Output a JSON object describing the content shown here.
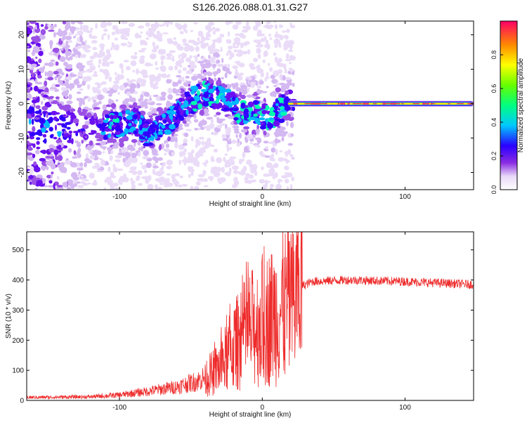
{
  "title": "S126.2026.088.01.31.G27",
  "chart_data": [
    {
      "type": "heatmap",
      "title": "S126.2026.088.01.31.G27",
      "xlabel": "Height of straight line (km)",
      "ylabel": "Frequency (Hz)",
      "xlim": [
        -165,
        148
      ],
      "ylim": [
        -25,
        24
      ],
      "xticks": [
        -100,
        0,
        100
      ],
      "yticks": [
        -20,
        -10,
        0,
        10,
        20
      ],
      "colorbar": {
        "label": "Normalized spectral amplitude",
        "range": [
          0,
          1
        ],
        "ticks": [
          0.0,
          0.2,
          0.4,
          0.6,
          0.8
        ]
      },
      "ridge": [
        {
          "x": -110,
          "y": -7
        },
        {
          "x": -100,
          "y": -6
        },
        {
          "x": -90,
          "y": -5
        },
        {
          "x": -80,
          "y": -9
        },
        {
          "x": -70,
          "y": -7
        },
        {
          "x": -60,
          "y": -3
        },
        {
          "x": -50,
          "y": 1
        },
        {
          "x": -40,
          "y": 3
        },
        {
          "x": -30,
          "y": 2
        },
        {
          "x": -20,
          "y": 0
        },
        {
          "x": -15,
          "y": -3
        },
        {
          "x": -8,
          "y": -2
        },
        {
          "x": 0,
          "y": -4
        },
        {
          "x": 8,
          "y": -3
        },
        {
          "x": 15,
          "y": -1
        },
        {
          "x": 18,
          "y": 0
        },
        {
          "x": 148,
          "y": 0
        }
      ],
      "steady_band": {
        "x_start": 18,
        "x_end": 148,
        "frequency": 0,
        "amplitude": 0.95
      }
    },
    {
      "type": "line",
      "xlabel": "Height of straight line (km)",
      "ylabel": "SNR (10 * v/v)",
      "xlim": [
        -165,
        148
      ],
      "ylim": [
        0,
        560
      ],
      "xticks": [
        -100,
        0,
        100
      ],
      "yticks": [
        0,
        100,
        200,
        300,
        400,
        500
      ],
      "color": "#ee2c2c",
      "envelope": [
        {
          "x": -165,
          "y": 10
        },
        {
          "x": -120,
          "y": 12
        },
        {
          "x": -100,
          "y": 18
        },
        {
          "x": -80,
          "y": 30
        },
        {
          "x": -60,
          "y": 45
        },
        {
          "x": -45,
          "y": 65
        },
        {
          "x": -35,
          "y": 90
        },
        {
          "x": -28,
          "y": 120
        },
        {
          "x": -20,
          "y": 180
        },
        {
          "x": -10,
          "y": 230
        },
        {
          "x": 0,
          "y": 260
        },
        {
          "x": 10,
          "y": 290
        },
        {
          "x": 20,
          "y": 330
        },
        {
          "x": 28,
          "y": 380
        },
        {
          "x": 35,
          "y": 395
        },
        {
          "x": 60,
          "y": 400
        },
        {
          "x": 100,
          "y": 395
        },
        {
          "x": 148,
          "y": 385
        }
      ]
    }
  ]
}
